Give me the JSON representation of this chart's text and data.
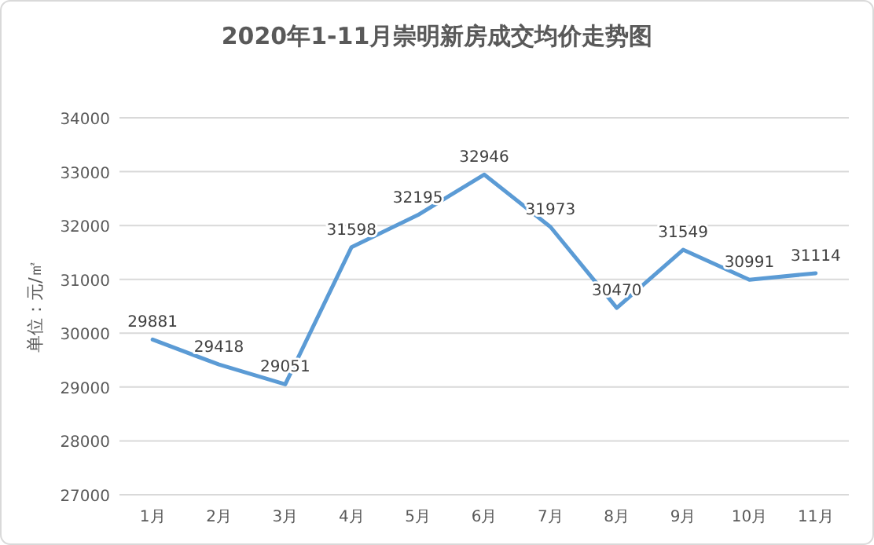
{
  "chart_data": {
    "type": "line",
    "title": "2020年1-11月崇明新房成交均价走势图",
    "ylabel": "单位：元/㎡",
    "categories": [
      "1月",
      "2月",
      "3月",
      "4月",
      "5月",
      "6月",
      "7月",
      "8月",
      "9月",
      "10月",
      "11月"
    ],
    "values": [
      29881,
      29418,
      29051,
      31598,
      32195,
      32946,
      31973,
      30470,
      31549,
      30991,
      31114
    ],
    "color": "#5b9bd5",
    "ylim": [
      27000,
      34000
    ],
    "yticks": [
      27000,
      28000,
      29000,
      30000,
      31000,
      32000,
      33000,
      34000
    ],
    "grid": "y",
    "data_labels": true
  }
}
